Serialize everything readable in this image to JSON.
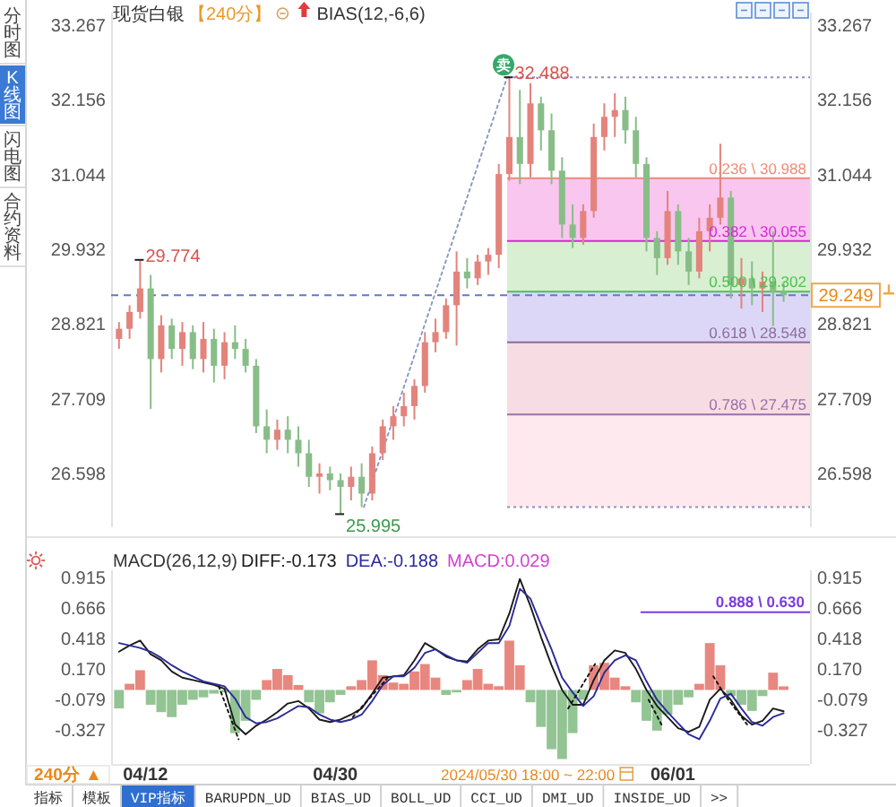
{
  "chart_data": [
    {
      "type": "candlestick",
      "title": "现货白银",
      "subtitle": "【240分】",
      "x": [
        "2024-04-09T12:00",
        "2024-04-10T12:00",
        "2024-04-11T12:00",
        "2024-04-12T12:00",
        "2024-04-13T12:00",
        "2024-04-14T12:00",
        "2024-04-15T12:00",
        "2024-04-16T12:00",
        "2024-04-17T12:00",
        "2024-04-18T12:00",
        "2024-04-19T12:00",
        "2024-04-20T12:00",
        "2024-04-21T12:00",
        "2024-04-22T12:00",
        "2024-04-23T12:00",
        "2024-04-24T12:00",
        "2024-04-25T12:00",
        "2024-04-26T12:00",
        "2024-04-27T12:00",
        "2024-04-28T12:00",
        "2024-04-29T12:00",
        "2024-04-30T12:00",
        "2024-05-01T12:00",
        "2024-05-02T12:00",
        "2024-05-03T12:00",
        "2024-05-04T12:00",
        "2024-05-05T12:00",
        "2024-05-06T12:00",
        "2024-05-07T12:00",
        "2024-05-08T12:00",
        "2024-05-09T12:00",
        "2024-05-10T12:00",
        "2024-05-11T12:00",
        "2024-05-12T12:00",
        "2024-05-13T12:00",
        "2024-05-14T12:00",
        "2024-05-15T12:00",
        "2024-05-16T12:00",
        "2024-05-17T12:00",
        "2024-05-18T12:00",
        "2024-05-19T12:00",
        "2024-05-20T12:00",
        "2024-05-21T12:00",
        "2024-05-22T12:00",
        "2024-05-23T12:00",
        "2024-05-24T12:00",
        "2024-05-25T12:00",
        "2024-05-26T12:00",
        "2024-05-27T12:00",
        "2024-05-28T12:00",
        "2024-05-29T12:00",
        "2024-05-30T12:00",
        "2024-05-31T12:00",
        "2024-06-01T12:00",
        "2024-06-02T12:00",
        "2024-06-03T12:00",
        "2024-06-04T12:00",
        "2024-06-05T12:00",
        "2024-06-06T12:00",
        "2024-06-07T12:00",
        "2024-06-08T12:00",
        "2024-06-09T12:00",
        "2024-06-10T12:00",
        "2024-06-11T12:00"
      ],
      "ohlc": [
        [
          28.6,
          28.85,
          28.45,
          28.75
        ],
        [
          28.75,
          29.1,
          28.6,
          29.0
        ],
        [
          29.0,
          29.774,
          28.9,
          29.35
        ],
        [
          29.35,
          29.55,
          27.56,
          28.3
        ],
        [
          28.3,
          28.95,
          28.1,
          28.8
        ],
        [
          28.8,
          28.9,
          28.3,
          28.45
        ],
        [
          28.45,
          28.85,
          28.2,
          28.7
        ],
        [
          28.7,
          28.8,
          28.15,
          28.3
        ],
        [
          28.3,
          28.85,
          28.1,
          28.6
        ],
        [
          28.6,
          28.75,
          27.95,
          28.2
        ],
        [
          28.2,
          28.7,
          28.0,
          28.55
        ],
        [
          28.55,
          28.8,
          28.3,
          28.45
        ],
        [
          28.45,
          28.6,
          28.1,
          28.2
        ],
        [
          28.2,
          28.3,
          27.2,
          27.3
        ],
        [
          27.3,
          27.55,
          26.9,
          27.1
        ],
        [
          27.1,
          27.4,
          26.95,
          27.25
        ],
        [
          27.25,
          27.45,
          26.9,
          27.1
        ],
        [
          27.1,
          27.3,
          26.7,
          26.9
        ],
        [
          26.9,
          27.1,
          26.4,
          26.55
        ],
        [
          26.55,
          26.75,
          26.3,
          26.6
        ],
        [
          26.6,
          26.7,
          26.35,
          26.5
        ],
        [
          26.5,
          26.6,
          25.995,
          26.4
        ],
        [
          26.4,
          26.7,
          26.2,
          26.55
        ],
        [
          26.55,
          26.75,
          26.1,
          26.3
        ],
        [
          26.3,
          27.0,
          26.2,
          26.9
        ],
        [
          26.9,
          27.4,
          26.8,
          27.3
        ],
        [
          27.3,
          27.6,
          27.1,
          27.45
        ],
        [
          27.45,
          27.8,
          27.3,
          27.6
        ],
        [
          27.6,
          28.0,
          27.4,
          27.9
        ],
        [
          27.9,
          28.7,
          27.8,
          28.55
        ],
        [
          28.55,
          28.9,
          28.4,
          28.7
        ],
        [
          28.7,
          29.2,
          28.6,
          29.1
        ],
        [
          29.1,
          29.9,
          28.5,
          29.6
        ],
        [
          29.6,
          29.8,
          29.35,
          29.5
        ],
        [
          29.5,
          29.85,
          29.4,
          29.75
        ],
        [
          29.75,
          29.95,
          29.55,
          29.85
        ],
        [
          29.85,
          31.2,
          29.65,
          31.05
        ],
        [
          31.05,
          32.488,
          30.95,
          31.6
        ],
        [
          31.6,
          32.3,
          30.9,
          31.2
        ],
        [
          31.2,
          32.4,
          31.0,
          32.1
        ],
        [
          32.1,
          32.2,
          31.4,
          31.7
        ],
        [
          31.7,
          31.95,
          30.9,
          31.1
        ],
        [
          31.1,
          31.3,
          30.1,
          30.3
        ],
        [
          30.3,
          30.6,
          29.95,
          30.1
        ],
        [
          30.1,
          30.6,
          30.0,
          30.5
        ],
        [
          30.5,
          31.8,
          30.4,
          31.6
        ],
        [
          31.6,
          32.1,
          31.4,
          31.9
        ],
        [
          31.9,
          32.25,
          31.6,
          32.0
        ],
        [
          32.0,
          32.2,
          31.5,
          31.7
        ],
        [
          31.7,
          31.9,
          31.0,
          31.2
        ],
        [
          31.2,
          31.3,
          29.9,
          30.1
        ],
        [
          30.1,
          30.2,
          29.55,
          29.8
        ],
        [
          29.8,
          30.8,
          29.7,
          30.5
        ],
        [
          30.5,
          30.6,
          29.7,
          29.9
        ],
        [
          29.9,
          30.1,
          29.4,
          29.6
        ],
        [
          29.6,
          30.4,
          29.5,
          30.2
        ],
        [
          30.2,
          30.6,
          29.9,
          30.4
        ],
        [
          30.4,
          31.5,
          30.3,
          30.7
        ],
        [
          30.7,
          30.8,
          29.2,
          29.4
        ],
        [
          29.4,
          29.8,
          29.05,
          29.5
        ],
        [
          29.5,
          29.75,
          29.1,
          29.35
        ],
        [
          29.35,
          29.6,
          29.0,
          29.45
        ],
        [
          29.45,
          30.2,
          28.79,
          29.3
        ],
        [
          29.3,
          29.45,
          29.15,
          29.249
        ]
      ],
      "colors": [
        "#e3837c",
        "#e3837c",
        "#e3837c",
        "#88bd88",
        "#e3837c",
        "#88bd88",
        "#e3837c",
        "#88bd88",
        "#e3837c",
        "#88bd88",
        "#e3837c",
        "#88bd88",
        "#88bd88",
        "#88bd88",
        "#88bd88",
        "#e3837c",
        "#88bd88",
        "#88bd88",
        "#88bd88",
        "#e3837c",
        "#88bd88",
        "#88bd88",
        "#e3837c",
        "#88bd88",
        "#e3837c",
        "#e3837c",
        "#e3837c",
        "#e3837c",
        "#e3837c",
        "#e3837c",
        "#e3837c",
        "#e3837c",
        "#e3837c",
        "#88bd88",
        "#e3837c",
        "#e3837c",
        "#e3837c",
        "#e3837c",
        "#88bd88",
        "#e3837c",
        "#88bd88",
        "#88bd88",
        "#88bd88",
        "#88bd88",
        "#e3837c",
        "#e3837c",
        "#e3837c",
        "#e3837c",
        "#88bd88",
        "#88bd88",
        "#88bd88",
        "#88bd88",
        "#e3837c",
        "#88bd88",
        "#88bd88",
        "#e3837c",
        "#e3837c",
        "#e3837c",
        "#88bd88",
        "#e3837c",
        "#88bd88",
        "#e3837c",
        "#88bd88",
        "#88bd88"
      ],
      "series": [
        {
          "type": "line",
          "x": [
            "2024-05-02T17:00",
            "2024-05-16T07:00"
          ],
          "values": [
            26.1,
            32.488
          ],
          "color": "#8a95c8",
          "line_style": "dotted"
        }
      ],
      "xlim": [
        "2024-04-08T18:00",
        "2024-06-14T00:00"
      ],
      "ylim": [
        25.8,
        33.45
      ],
      "yticks": [
        26.598,
        27.709,
        28.821,
        29.932,
        31.044,
        32.156,
        33.267
      ],
      "y2lim": [
        25.8,
        33.45
      ],
      "y2ticks": [
        26.598,
        27.709,
        28.821,
        29.932,
        31.044,
        32.156,
        33.267
      ],
      "tick_labels": "y",
      "ref_lines": [
        {
          "axis": "y",
          "value": 29.249,
          "label": "29.249",
          "color": "#6677cc",
          "line_style": "dashed"
        },
        {
          "axis": "y",
          "value": 32.488,
          "color": "#9090c0",
          "line_style": "dotted"
        },
        {
          "axis": "y",
          "value": 30.988,
          "label": "0.236 \\ 30.988",
          "color": "#f08a78"
        },
        {
          "axis": "y",
          "value": 30.055,
          "label": "0.382 \\ 30.055",
          "color": "#d42ad4"
        },
        {
          "axis": "y",
          "value": 29.302,
          "label": "0.500 \\ 29.302",
          "color": "#4cc24c"
        },
        {
          "axis": "y",
          "value": 28.548,
          "label": "0.618 \\ 28.548",
          "color": "#8b6d9c"
        },
        {
          "axis": "y",
          "value": 27.475,
          "label": "0.786 \\ 27.475",
          "color": "#9b6fa8"
        },
        {
          "axis": "y",
          "value": 26.1,
          "color": "#9090c0",
          "line_style": "dotted"
        }
      ],
      "bands": [
        {
          "axis": "y",
          "from": 30.988,
          "to": 30.055,
          "color": "#f9c6f0"
        },
        {
          "axis": "y",
          "from": 30.055,
          "to": 29.302,
          "color": "#d8efd2"
        },
        {
          "axis": "y",
          "from": 29.302,
          "to": 28.548,
          "color": "#ddd7f7"
        },
        {
          "axis": "y",
          "from": 28.548,
          "to": 27.475,
          "color": "#f7dde3"
        },
        {
          "axis": "y",
          "from": 27.475,
          "to": 26.1,
          "color": "#fde9ee"
        }
      ],
      "annotations": [
        "BIAS(12,-6,6)",
        "分时图",
        "K线图",
        "闪电图",
        "合约资料",
        {
          "text": "29.774",
          "x": "2024-04-11T12:00",
          "y": 29.774
        },
        {
          "text": "25.995",
          "x": "2024-04-30T12:00",
          "y": 25.995
        },
        {
          "text": "32.488",
          "x": "2024-05-16T12:00",
          "y": 32.488
        },
        {
          "text": "卖",
          "x": "2024-05-16T07:00",
          "y": 32.488
        }
      ]
    },
    {
      "type": "bar",
      "title": "MACD(26,12,9)",
      "x": [
        "2024-04-09T12:00",
        "2024-04-10T12:00",
        "2024-04-11T12:00",
        "2024-04-12T12:00",
        "2024-04-13T12:00",
        "2024-04-14T12:00",
        "2024-04-15T12:00",
        "2024-04-16T12:00",
        "2024-04-17T12:00",
        "2024-04-18T12:00",
        "2024-04-19T12:00",
        "2024-04-20T12:00",
        "2024-04-21T12:00",
        "2024-04-22T12:00",
        "2024-04-23T12:00",
        "2024-04-24T12:00",
        "2024-04-25T12:00",
        "2024-04-26T12:00",
        "2024-04-27T12:00",
        "2024-04-28T12:00",
        "2024-04-29T12:00",
        "2024-04-30T12:00",
        "2024-05-01T12:00",
        "2024-05-02T12:00",
        "2024-05-03T12:00",
        "2024-05-04T12:00",
        "2024-05-05T12:00",
        "2024-05-06T12:00",
        "2024-05-07T12:00",
        "2024-05-08T12:00",
        "2024-05-09T12:00",
        "2024-05-10T12:00",
        "2024-05-11T12:00",
        "2024-05-12T12:00",
        "2024-05-13T12:00",
        "2024-05-14T12:00",
        "2024-05-15T12:00",
        "2024-05-16T12:00",
        "2024-05-17T12:00",
        "2024-05-18T12:00",
        "2024-05-19T12:00",
        "2024-05-20T12:00",
        "2024-05-21T12:00",
        "2024-05-22T12:00",
        "2024-05-23T12:00",
        "2024-05-24T12:00",
        "2024-05-25T12:00",
        "2024-05-26T12:00",
        "2024-05-27T12:00",
        "2024-05-28T12:00",
        "2024-05-29T12:00",
        "2024-05-30T12:00",
        "2024-05-31T12:00",
        "2024-06-01T12:00",
        "2024-06-02T12:00",
        "2024-06-03T12:00",
        "2024-06-04T12:00",
        "2024-06-05T12:00",
        "2024-06-06T12:00",
        "2024-06-07T12:00",
        "2024-06-08T12:00",
        "2024-06-09T12:00",
        "2024-06-10T12:00",
        "2024-06-11T12:00"
      ],
      "values": [
        -0.15,
        0.05,
        0.16,
        -0.12,
        -0.18,
        -0.22,
        -0.12,
        -0.08,
        -0.06,
        -0.03,
        -0.02,
        -0.35,
        -0.25,
        -0.08,
        0.08,
        0.17,
        0.12,
        0.04,
        -0.1,
        -0.19,
        -0.1,
        -0.04,
        0.03,
        0.08,
        0.24,
        0.12,
        0.06,
        0.05,
        0.15,
        0.21,
        0.1,
        -0.04,
        -0.02,
        0.08,
        0.17,
        0.05,
        0.03,
        0.4,
        0.2,
        -0.1,
        -0.3,
        -0.48,
        -0.56,
        -0.35,
        -0.08,
        0.2,
        0.22,
        0.1,
        0.03,
        -0.1,
        -0.25,
        -0.33,
        -0.2,
        -0.12,
        -0.06,
        0.05,
        0.38,
        0.2,
        -0.05,
        -0.12,
        -0.17,
        -0.05,
        0.14,
        0.029
      ],
      "colors": [
        "#93c493",
        "#e8877f",
        "#e8877f",
        "#93c493",
        "#93c493",
        "#93c493",
        "#93c493",
        "#93c493",
        "#93c493",
        "#93c493",
        "#93c493",
        "#93c493",
        "#93c493",
        "#93c493",
        "#e8877f",
        "#e8877f",
        "#e8877f",
        "#e8877f",
        "#93c493",
        "#93c493",
        "#93c493",
        "#93c493",
        "#e8877f",
        "#e8877f",
        "#e8877f",
        "#e8877f",
        "#e8877f",
        "#e8877f",
        "#e8877f",
        "#e8877f",
        "#e8877f",
        "#93c493",
        "#93c493",
        "#e8877f",
        "#e8877f",
        "#e8877f",
        "#e8877f",
        "#e8877f",
        "#e8877f",
        "#93c493",
        "#93c493",
        "#93c493",
        "#93c493",
        "#93c493",
        "#93c493",
        "#e8877f",
        "#e8877f",
        "#e8877f",
        "#e8877f",
        "#93c493",
        "#93c493",
        "#93c493",
        "#93c493",
        "#93c493",
        "#93c493",
        "#e8877f",
        "#e8877f",
        "#e8877f",
        "#93c493",
        "#93c493",
        "#93c493",
        "#93c493",
        "#e8877f",
        "#e8877f"
      ],
      "series": [
        {
          "type": "line",
          "name": "DIFF:-0.173",
          "color": "#1a1a1a",
          "values": [
            0.31,
            0.36,
            0.4,
            0.29,
            0.24,
            0.15,
            0.1,
            0.08,
            0.06,
            0.04,
            0.01,
            -0.28,
            -0.36,
            -0.29,
            -0.24,
            -0.18,
            -0.11,
            -0.09,
            -0.15,
            -0.24,
            -0.26,
            -0.24,
            -0.2,
            -0.15,
            -0.03,
            0.1,
            0.11,
            0.12,
            0.24,
            0.38,
            0.33,
            0.27,
            0.24,
            0.23,
            0.33,
            0.4,
            0.41,
            0.62,
            0.9,
            0.68,
            0.43,
            0.2,
            0.0,
            -0.12,
            -0.12,
            0.08,
            0.24,
            0.32,
            0.3,
            0.17,
            0.0,
            -0.13,
            -0.22,
            -0.31,
            -0.34,
            -0.3,
            -0.08,
            0.01,
            -0.08,
            -0.21,
            -0.28,
            -0.25,
            -0.15,
            -0.173
          ]
        },
        {
          "type": "line",
          "name": "DEA:-0.188",
          "color": "#2a2a9a",
          "values": [
            0.38,
            0.36,
            0.34,
            0.31,
            0.26,
            0.2,
            0.15,
            0.11,
            0.07,
            0.05,
            0.03,
            -0.07,
            -0.22,
            -0.27,
            -0.26,
            -0.23,
            -0.18,
            -0.13,
            -0.14,
            -0.2,
            -0.24,
            -0.26,
            -0.24,
            -0.2,
            -0.09,
            0.04,
            0.11,
            0.11,
            0.18,
            0.3,
            0.33,
            0.28,
            0.24,
            0.22,
            0.3,
            0.38,
            0.38,
            0.52,
            0.82,
            0.74,
            0.53,
            0.33,
            0.1,
            -0.02,
            -0.13,
            -0.05,
            0.14,
            0.24,
            0.28,
            0.24,
            0.07,
            -0.08,
            -0.18,
            -0.27,
            -0.36,
            -0.4,
            -0.25,
            -0.07,
            -0.03,
            -0.15,
            -0.26,
            -0.29,
            -0.22,
            -0.188
          ]
        },
        {
          "type": "line",
          "x": [
            "2024-04-18T23:00",
            "2024-04-20T20:00"
          ],
          "values": [
            0.03,
            -0.4
          ],
          "color": "#111111",
          "line_style": "dotted"
        },
        {
          "type": "line",
          "x": [
            "2024-05-01T16:00",
            "2024-05-05T02:00"
          ],
          "values": [
            -0.22,
            0.11
          ],
          "color": "#111111",
          "line_style": "dotted"
        },
        {
          "type": "line",
          "x": [
            "2024-05-22T02:00",
            "2024-05-24T15:00"
          ],
          "values": [
            -0.15,
            0.21
          ],
          "color": "#111111",
          "line_style": "dotted"
        },
        {
          "type": "line",
          "x": [
            "2024-05-29T17:00",
            "2024-05-31T01:00"
          ],
          "values": [
            -0.08,
            -0.3
          ],
          "color": "#111111",
          "line_style": "dotted"
        },
        {
          "type": "line",
          "x": [
            "2024-06-04T20:00",
            "2024-06-06T00:00",
            "2024-06-08T01:00"
          ],
          "values": [
            0.11,
            -0.05,
            -0.28
          ],
          "color": "#111111",
          "line_style": "dotted"
        },
        {
          "type": "line",
          "x": [
            "2024-05-29T00:00",
            "2024-06-14T00:00"
          ],
          "values": [
            0.63,
            0.63
          ],
          "color": "#7a3de0"
        }
      ],
      "xlim": [
        "2024-04-08T18:00",
        "2024-06-14T00:00"
      ],
      "xticks": [
        {
          "value": "2024-04-12",
          "label": "04/12"
        },
        {
          "value": "2024-04-30",
          "label": "04/30"
        },
        {
          "value": "2024-06-01",
          "label": "06/01"
        }
      ],
      "ylim": [
        -0.6,
        0.97
      ],
      "yticks": [
        -0.327,
        -0.079,
        {
          "value": 0.17,
          "label": "0.170"
        },
        0.418,
        0.666,
        0.915
      ],
      "y2lim": [
        -0.6,
        0.97
      ],
      "y2ticks": [
        -0.327,
        -0.079,
        {
          "value": 0.17,
          "label": "0.170"
        },
        0.418,
        0.666,
        0.915
      ],
      "legend": "top left",
      "annotations": [
        "MACD:0.029",
        "240分 ▲",
        "2024/05/30 18:00 ~ 22:00",
        "指标",
        "模板",
        "VIP指标",
        "BARUPDN_UD",
        "BIAS_UD",
        "BOLL_UD",
        "CCI_UD",
        "DMI_UD",
        "INSIDE_UD",
        ">>",
        {
          "text": "0.888 \\ 0.630",
          "x": "2024-06-14T00:00",
          "y": 0.63
        }
      ]
    }
  ]
}
